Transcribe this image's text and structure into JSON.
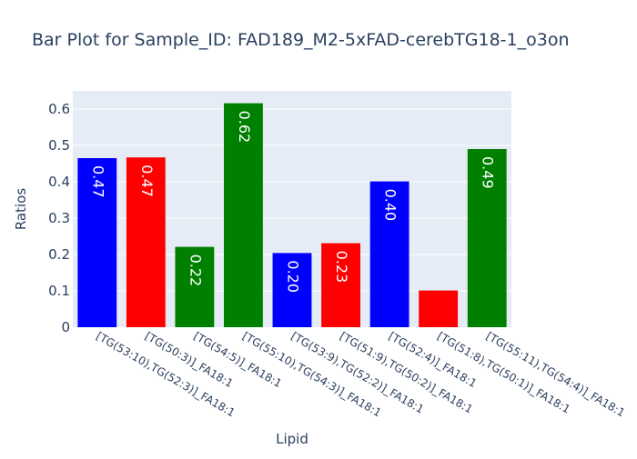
{
  "chart_data": {
    "type": "bar",
    "title": "Bar Plot for Sample_ID: FAD189_M2-5xFAD-cerebTG18-1_o3on",
    "xlabel": "Lipid",
    "ylabel": "Ratios",
    "ylim": [
      0,
      0.65
    ],
    "yticks": [
      0,
      0.1,
      0.2,
      0.3,
      0.4,
      0.5,
      0.6
    ],
    "ytick_labels": [
      "0",
      "0.1",
      "0.2",
      "0.3",
      "0.4",
      "0.5",
      "0.6"
    ],
    "grid": true,
    "legend": "none",
    "categories": [
      "[TG(53:10),TG(52:3)]_FA18:1",
      "[TG(50:3)]_FA18:1",
      "[TG(54:5)]_FA18:1",
      "[TG(55:10),TG(54:3)]_FA18:1",
      "[TG(53:9),TG(52:2)]_FA18:1",
      "[TG(51:9),TG(50:2)]_FA18:1",
      "[TG(52:4)]_FA18:1",
      "[TG(51:8),TG(50:1)]_FA18:1",
      "[TG(55:11),TG(54:4)]_FA18:1"
    ],
    "values": [
      0.465,
      0.467,
      0.221,
      0.616,
      0.204,
      0.231,
      0.401,
      0.101,
      0.49
    ],
    "data_labels": [
      "0.47",
      "0.47",
      "0.22",
      "0.62",
      "0.20",
      "0.23",
      "0.40",
      "",
      "0.49"
    ],
    "bar_colors": [
      "#0000ff",
      "#ff0000",
      "#008000",
      "#008000",
      "#0000ff",
      "#ff0000",
      "#0000ff",
      "#ff0000",
      "#008000"
    ],
    "plot_background": "#e5ecf6",
    "text_color": "#2a3f5f"
  }
}
